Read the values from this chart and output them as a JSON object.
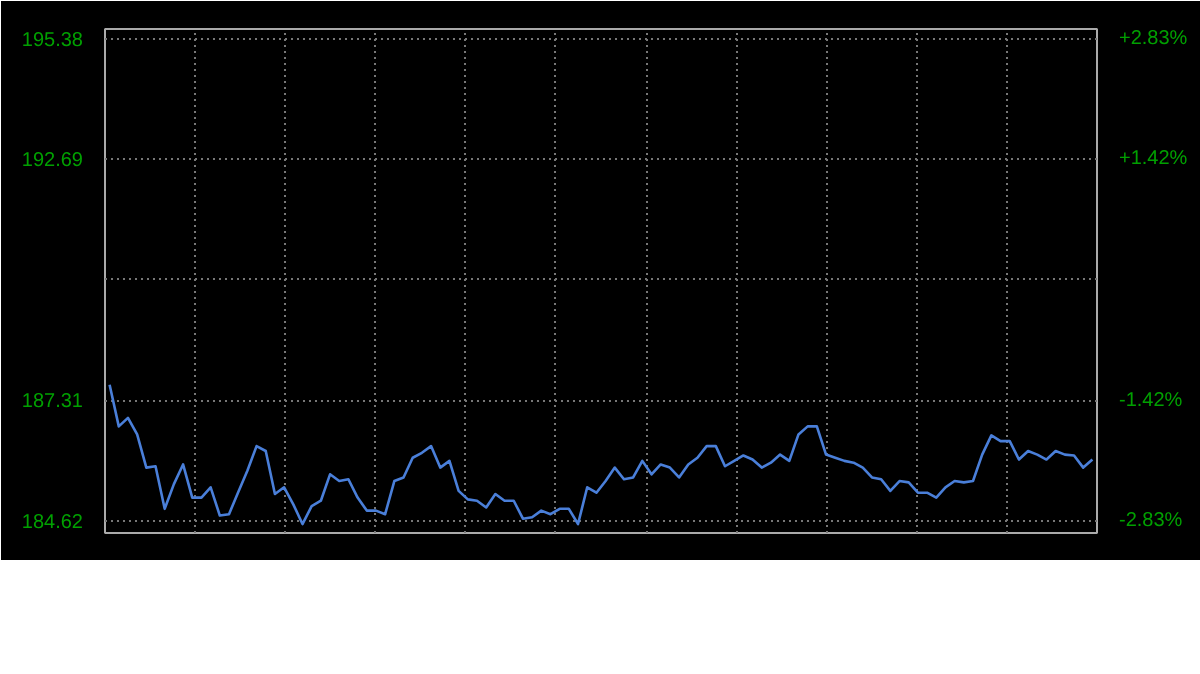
{
  "chart_data": {
    "type": "line",
    "categories": [
      null,
      null,
      null,
      null,
      null,
      null,
      null,
      null,
      null,
      null,
      null,
      null,
      null,
      null,
      null,
      null,
      null,
      null,
      null,
      null,
      null,
      null,
      null,
      null,
      null,
      null,
      null,
      null,
      null,
      null,
      null,
      null,
      null,
      null,
      null,
      null,
      null,
      null,
      null,
      null,
      null,
      null,
      null,
      null,
      null,
      null,
      null,
      null,
      null,
      null,
      null,
      null,
      null,
      null,
      null,
      null,
      null,
      null,
      null,
      null,
      null,
      null,
      null,
      null,
      null,
      null,
      null,
      null,
      null,
      null,
      null,
      null,
      null,
      null,
      null,
      null,
      null,
      null,
      null,
      null,
      null,
      null,
      null,
      null,
      null,
      null,
      null,
      null,
      null,
      null,
      null,
      null,
      null,
      null,
      null,
      null,
      null,
      null,
      null,
      null,
      null,
      null,
      null,
      null,
      null,
      null,
      null,
      null
    ],
    "series": [
      {
        "color": "#4a7fd9",
        "values": [
          187.66,
          186.73,
          186.92,
          186.55,
          185.81,
          185.84,
          184.89,
          185.44,
          185.88,
          185.14,
          185.14,
          185.37,
          184.74,
          184.77,
          185.26,
          185.74,
          186.29,
          186.18,
          185.22,
          185.37,
          184.99,
          184.55,
          184.95,
          185.07,
          185.66,
          185.51,
          185.55,
          185.14,
          184.85,
          184.85,
          184.77,
          185.51,
          185.59,
          186.03,
          186.14,
          186.29,
          185.81,
          185.96,
          185.29,
          185.1,
          185.07,
          184.92,
          185.22,
          185.07,
          185.07,
          184.67,
          184.7,
          184.85,
          184.77,
          184.89,
          184.89,
          184.55,
          185.37,
          185.25,
          185.51,
          185.81,
          185.55,
          185.59,
          185.96,
          185.66,
          185.88,
          185.81,
          185.59,
          185.88,
          186.03,
          186.29,
          186.29,
          185.84,
          185.96,
          186.08,
          185.99,
          185.81,
          185.92,
          186.1,
          185.96,
          186.55,
          186.73,
          186.73,
          186.1,
          186.03,
          185.96,
          185.92,
          185.81,
          185.59,
          185.55,
          185.29,
          185.51,
          185.48,
          185.25,
          185.25,
          185.14,
          185.37,
          185.51,
          185.48,
          185.51,
          186.1,
          186.53,
          186.4,
          186.4,
          185.99,
          186.18,
          186.1,
          185.99,
          186.18,
          186.1,
          186.08,
          185.81,
          185.99
        ]
      }
    ],
    "ylim": [
      184.35,
      195.6
    ],
    "yticks": [
      184.62,
      187.31,
      {
        "value": 190.0,
        "label": null
      },
      192.69,
      195.38
    ],
    "y2lim": [
      -2.97,
      2.95
    ],
    "y2ticks": [
      {
        "value": -2.83,
        "label": "-2.83%"
      },
      {
        "value": -1.42,
        "label": "-1.42%"
      },
      {
        "value": 1.42,
        "label": "+1.42%"
      },
      {
        "value": 2.83,
        "label": "+2.83%"
      }
    ],
    "grid": true,
    "tick_labels": "y",
    "line_style": "solid"
  }
}
